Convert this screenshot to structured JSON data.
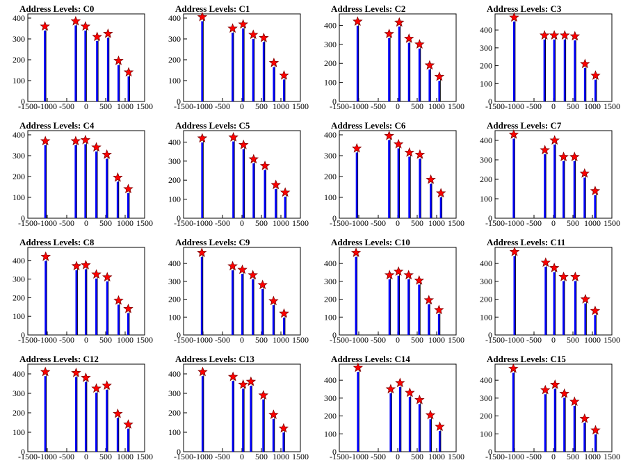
{
  "title_prefix": "Address Levels: ",
  "colors": {
    "bar": "#0000ff",
    "frame": "#000000",
    "marker": "#ff0000",
    "background": "#ffffff"
  },
  "chart_data": [
    {
      "type": "bar",
      "title": "Address Levels: C0",
      "xlim": [
        -1500,
        1500
      ],
      "ylim": [
        0,
        420
      ],
      "yticks": [
        0,
        100,
        200,
        300,
        400
      ],
      "xtick_labels": [
        "-1500",
        "-1000",
        "-500",
        "0",
        "500",
        "1000",
        "1500"
      ],
      "xticks": [
        -1500,
        -1000,
        -500,
        0,
        500,
        1000,
        1500
      ],
      "peaks": [
        {
          "x": -1060,
          "y": 360
        },
        {
          "x": -270,
          "y": 385
        },
        {
          "x": -20,
          "y": 360
        },
        {
          "x": 280,
          "y": 310
        },
        {
          "x": 560,
          "y": 325
        },
        {
          "x": 830,
          "y": 195
        },
        {
          "x": 1090,
          "y": 140
        }
      ]
    },
    {
      "type": "bar",
      "title": "Address Levels: C1",
      "xlim": [
        -1500,
        1500
      ],
      "ylim": [
        0,
        420
      ],
      "yticks": [
        0,
        100,
        200,
        300,
        400
      ],
      "xtick_labels": [
        "-1500",
        "-1000",
        "-500",
        "0",
        "500",
        "1000",
        "1500"
      ],
      "xticks": [
        -1500,
        -1000,
        -500,
        0,
        500,
        1000,
        1500
      ],
      "peaks": [
        {
          "x": -1020,
          "y": 405
        },
        {
          "x": -240,
          "y": 350
        },
        {
          "x": 30,
          "y": 370
        },
        {
          "x": 290,
          "y": 320
        },
        {
          "x": 560,
          "y": 305
        },
        {
          "x": 820,
          "y": 185
        },
        {
          "x": 1080,
          "y": 125
        }
      ]
    },
    {
      "type": "bar",
      "title": "Address Levels: C2",
      "xlim": [
        -1500,
        1500
      ],
      "ylim": [
        0,
        460
      ],
      "yticks": [
        0,
        100,
        200,
        300,
        400
      ],
      "xtick_labels": [
        "-1500",
        "-1000",
        "-500",
        "0",
        "500",
        "1000",
        "1500"
      ],
      "xticks": [
        -1500,
        -1000,
        -500,
        0,
        500,
        1000,
        1500
      ],
      "peaks": [
        {
          "x": -1030,
          "y": 420
        },
        {
          "x": -220,
          "y": 355
        },
        {
          "x": 40,
          "y": 415
        },
        {
          "x": 290,
          "y": 330
        },
        {
          "x": 560,
          "y": 300
        },
        {
          "x": 820,
          "y": 190
        },
        {
          "x": 1070,
          "y": 130
        }
      ]
    },
    {
      "type": "bar",
      "title": "Address Levels: C3",
      "xlim": [
        -1500,
        1500
      ],
      "ylim": [
        0,
        490
      ],
      "yticks": [
        0,
        100,
        200,
        300,
        400
      ],
      "xtick_labels": [
        "-1500",
        "-1000",
        "-500",
        "0",
        "500",
        "1000",
        "1500"
      ],
      "xticks": [
        -1500,
        -1000,
        -500,
        0,
        500,
        1000,
        1500
      ],
      "peaks": [
        {
          "x": -1010,
          "y": 470
        },
        {
          "x": -230,
          "y": 370
        },
        {
          "x": 20,
          "y": 370
        },
        {
          "x": 290,
          "y": 370
        },
        {
          "x": 550,
          "y": 365
        },
        {
          "x": 810,
          "y": 210
        },
        {
          "x": 1080,
          "y": 145
        }
      ]
    },
    {
      "type": "bar",
      "title": "Address Levels: C4",
      "xlim": [
        -1500,
        1500
      ],
      "ylim": [
        0,
        420
      ],
      "yticks": [
        0,
        100,
        200,
        300,
        400
      ],
      "xtick_labels": [
        "-1500",
        "-1000",
        "-500",
        "0",
        "500",
        "1000",
        "1500"
      ],
      "xticks": [
        -1500,
        -1000,
        -500,
        0,
        500,
        1000,
        1500
      ],
      "peaks": [
        {
          "x": -1050,
          "y": 370
        },
        {
          "x": -270,
          "y": 370
        },
        {
          "x": -20,
          "y": 375
        },
        {
          "x": 260,
          "y": 340
        },
        {
          "x": 530,
          "y": 305
        },
        {
          "x": 810,
          "y": 195
        },
        {
          "x": 1080,
          "y": 140
        }
      ]
    },
    {
      "type": "bar",
      "title": "Address Levels: C5",
      "xlim": [
        -1500,
        1500
      ],
      "ylim": [
        0,
        460
      ],
      "yticks": [
        0,
        100,
        200,
        300,
        400
      ],
      "xtick_labels": [
        "-1500",
        "-1000",
        "-500",
        "0",
        "500",
        "1000",
        "1500"
      ],
      "xticks": [
        -1500,
        -1000,
        -500,
        0,
        500,
        1000,
        1500
      ],
      "peaks": [
        {
          "x": -1020,
          "y": 420
        },
        {
          "x": -220,
          "y": 425
        },
        {
          "x": 40,
          "y": 385
        },
        {
          "x": 300,
          "y": 310
        },
        {
          "x": 590,
          "y": 275
        },
        {
          "x": 870,
          "y": 175
        },
        {
          "x": 1110,
          "y": 135
        }
      ]
    },
    {
      "type": "bar",
      "title": "Address Levels: C6",
      "xlim": [
        -1500,
        1500
      ],
      "ylim": [
        0,
        420
      ],
      "yticks": [
        0,
        100,
        200,
        300,
        400
      ],
      "xtick_labels": [
        "-1500",
        "-1000",
        "-500",
        "0",
        "500",
        "1000",
        "1500"
      ],
      "xticks": [
        -1500,
        -1000,
        -500,
        0,
        500,
        1000,
        1500
      ],
      "peaks": [
        {
          "x": -1050,
          "y": 335
        },
        {
          "x": -220,
          "y": 395
        },
        {
          "x": 20,
          "y": 355
        },
        {
          "x": 300,
          "y": 315
        },
        {
          "x": 570,
          "y": 305
        },
        {
          "x": 850,
          "y": 185
        },
        {
          "x": 1110,
          "y": 120
        }
      ]
    },
    {
      "type": "bar",
      "title": "Address Levels: C7",
      "xlim": [
        -1500,
        1500
      ],
      "ylim": [
        0,
        450
      ],
      "yticks": [
        0,
        100,
        200,
        300,
        400
      ],
      "xtick_labels": [
        "-1500",
        "-1000",
        "-500",
        "0",
        "500",
        "1000",
        "1500"
      ],
      "xticks": [
        -1500,
        -1000,
        -500,
        0,
        500,
        1000,
        1500
      ],
      "peaks": [
        {
          "x": -1020,
          "y": 430
        },
        {
          "x": -220,
          "y": 350
        },
        {
          "x": 30,
          "y": 400
        },
        {
          "x": 260,
          "y": 315
        },
        {
          "x": 540,
          "y": 315
        },
        {
          "x": 800,
          "y": 230
        },
        {
          "x": 1070,
          "y": 140
        }
      ]
    },
    {
      "type": "bar",
      "title": "Address Levels: C8",
      "xlim": [
        -1500,
        1500
      ],
      "ylim": [
        0,
        470
      ],
      "yticks": [
        0,
        100,
        200,
        300,
        400
      ],
      "xtick_labels": [
        "-1500",
        "-1000",
        "-500",
        "0",
        "500",
        "1000",
        "1500"
      ],
      "xticks": [
        -1500,
        -1000,
        -500,
        0,
        500,
        1000,
        1500
      ],
      "peaks": [
        {
          "x": -1040,
          "y": 420
        },
        {
          "x": -250,
          "y": 370
        },
        {
          "x": -10,
          "y": 375
        },
        {
          "x": 260,
          "y": 325
        },
        {
          "x": 540,
          "y": 310
        },
        {
          "x": 830,
          "y": 185
        },
        {
          "x": 1080,
          "y": 140
        }
      ]
    },
    {
      "type": "bar",
      "title": "Address Levels: C9",
      "xlim": [
        -1500,
        1500
      ],
      "ylim": [
        0,
        490
      ],
      "yticks": [
        0,
        100,
        200,
        300,
        400
      ],
      "xtick_labels": [
        "-1500",
        "-1000",
        "-500",
        "0",
        "500",
        "1000",
        "1500"
      ],
      "xticks": [
        -1500,
        -1000,
        -500,
        0,
        500,
        1000,
        1500
      ],
      "peaks": [
        {
          "x": -1030,
          "y": 460
        },
        {
          "x": -240,
          "y": 385
        },
        {
          "x": 10,
          "y": 365
        },
        {
          "x": 280,
          "y": 335
        },
        {
          "x": 530,
          "y": 280
        },
        {
          "x": 810,
          "y": 190
        },
        {
          "x": 1080,
          "y": 120
        }
      ]
    },
    {
      "type": "bar",
      "title": "Address Levels: C10",
      "xlim": [
        -1500,
        1500
      ],
      "ylim": [
        0,
        490
      ],
      "yticks": [
        0,
        100,
        200,
        300,
        400
      ],
      "xtick_labels": [
        "-1500",
        "-1000",
        "-500",
        "0",
        "500",
        "1000",
        "1500"
      ],
      "xticks": [
        -1500,
        -1000,
        -500,
        0,
        500,
        1000,
        1500
      ],
      "peaks": [
        {
          "x": -1070,
          "y": 460
        },
        {
          "x": -210,
          "y": 335
        },
        {
          "x": 20,
          "y": 355
        },
        {
          "x": 280,
          "y": 335
        },
        {
          "x": 550,
          "y": 305
        },
        {
          "x": 800,
          "y": 195
        },
        {
          "x": 1060,
          "y": 140
        }
      ]
    },
    {
      "type": "bar",
      "title": "Address Levels: C11",
      "xlim": [
        -1500,
        1500
      ],
      "ylim": [
        0,
        490
      ],
      "yticks": [
        0,
        100,
        200,
        300,
        400
      ],
      "xtick_labels": [
        "-1500",
        "-1000",
        "-500",
        "0",
        "500",
        "1000",
        "1500"
      ],
      "xticks": [
        -1500,
        -1000,
        -500,
        0,
        500,
        1000,
        1500
      ],
      "peaks": [
        {
          "x": -1000,
          "y": 465
        },
        {
          "x": -200,
          "y": 405
        },
        {
          "x": 20,
          "y": 375
        },
        {
          "x": 260,
          "y": 325
        },
        {
          "x": 560,
          "y": 325
        },
        {
          "x": 820,
          "y": 200
        },
        {
          "x": 1070,
          "y": 135
        }
      ]
    },
    {
      "type": "bar",
      "title": "Address Levels: C12",
      "xlim": [
        -1500,
        1500
      ],
      "ylim": [
        0,
        450
      ],
      "yticks": [
        0,
        100,
        200,
        300,
        400
      ],
      "xtick_labels": [
        "-1500",
        "-1000",
        "-500",
        "0",
        "500",
        "1000",
        "1500"
      ],
      "xticks": [
        -1500,
        -1000,
        -500,
        0,
        500,
        1000,
        1500
      ],
      "peaks": [
        {
          "x": -1050,
          "y": 410
        },
        {
          "x": -260,
          "y": 405
        },
        {
          "x": -10,
          "y": 380
        },
        {
          "x": 260,
          "y": 325
        },
        {
          "x": 530,
          "y": 340
        },
        {
          "x": 810,
          "y": 195
        },
        {
          "x": 1080,
          "y": 140
        }
      ]
    },
    {
      "type": "bar",
      "title": "Address Levels: C13",
      "xlim": [
        -1500,
        1500
      ],
      "ylim": [
        0,
        450
      ],
      "yticks": [
        0,
        100,
        200,
        300,
        400
      ],
      "xtick_labels": [
        "-1500",
        "-1000",
        "-500",
        "0",
        "500",
        "1000",
        "1500"
      ],
      "xticks": [
        -1500,
        -1000,
        -500,
        0,
        500,
        1000,
        1500
      ],
      "peaks": [
        {
          "x": -1010,
          "y": 410
        },
        {
          "x": -230,
          "y": 385
        },
        {
          "x": 30,
          "y": 345
        },
        {
          "x": 230,
          "y": 360
        },
        {
          "x": 550,
          "y": 290
        },
        {
          "x": 810,
          "y": 190
        },
        {
          "x": 1070,
          "y": 120
        }
      ]
    },
    {
      "type": "bar",
      "title": "Address Levels: C14",
      "xlim": [
        -1500,
        1500
      ],
      "ylim": [
        0,
        490
      ],
      "yticks": [
        0,
        100,
        200,
        300,
        400
      ],
      "xtick_labels": [
        "-1500",
        "-1000",
        "-500",
        "0",
        "500",
        "1000",
        "1500"
      ],
      "xticks": [
        -1500,
        -1000,
        -500,
        0,
        500,
        1000,
        1500
      ],
      "peaks": [
        {
          "x": -1020,
          "y": 470
        },
        {
          "x": -180,
          "y": 350
        },
        {
          "x": 60,
          "y": 385
        },
        {
          "x": 310,
          "y": 330
        },
        {
          "x": 560,
          "y": 290
        },
        {
          "x": 840,
          "y": 205
        },
        {
          "x": 1080,
          "y": 140
        }
      ]
    },
    {
      "type": "bar",
      "title": "Address Levels: C15",
      "xlim": [
        -1500,
        1500
      ],
      "ylim": [
        0,
        490
      ],
      "yticks": [
        0,
        100,
        200,
        300,
        400
      ],
      "xtick_labels": [
        "-1500",
        "-1000",
        "-500",
        "0",
        "500",
        "1000",
        "1500"
      ],
      "xticks": [
        -1500,
        -1000,
        -500,
        0,
        500,
        1000,
        1500
      ],
      "peaks": [
        {
          "x": -1030,
          "y": 465
        },
        {
          "x": -210,
          "y": 345
        },
        {
          "x": 40,
          "y": 375
        },
        {
          "x": 280,
          "y": 325
        },
        {
          "x": 540,
          "y": 280
        },
        {
          "x": 800,
          "y": 185
        },
        {
          "x": 1080,
          "y": 120
        }
      ]
    }
  ]
}
